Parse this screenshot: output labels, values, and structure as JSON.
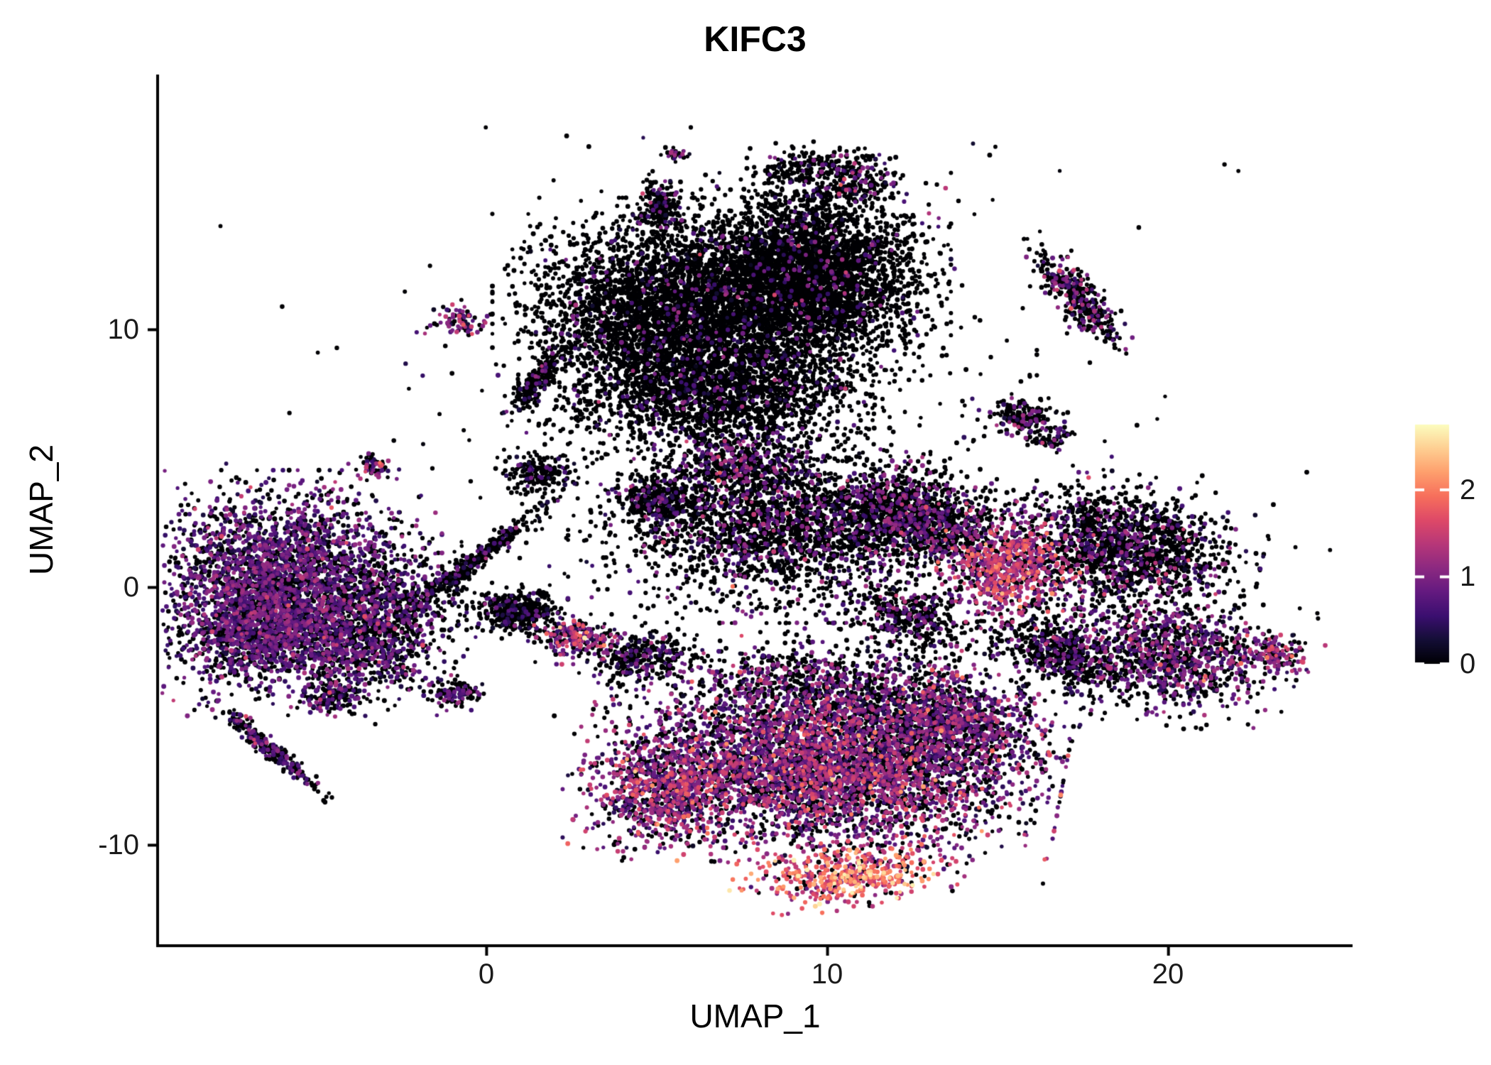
{
  "title": "KIFC3",
  "axes": {
    "x_label": "UMAP_1",
    "y_label": "UMAP_2",
    "x_tick_labels": [
      "0",
      "10",
      "20"
    ],
    "y_tick_labels": [
      "10",
      "0",
      "-10"
    ],
    "colorbar_tick_labels": [
      "2",
      "1",
      "0"
    ]
  },
  "chart_data": {
    "type": "scatter",
    "title": "KIFC3",
    "xlabel": "UMAP_1",
    "ylabel": "UMAP_2",
    "xlim": [
      -9.65,
      25.4
    ],
    "ylim": [
      -13.9,
      19.9
    ],
    "x_ticks": [
      0,
      10,
      20
    ],
    "y_ticks": [
      -10,
      0,
      10
    ],
    "grid": false,
    "legend_position": "right",
    "colorbar": {
      "ticks": [
        2,
        1,
        0
      ],
      "domain": [
        0,
        2.75
      ],
      "colormap": "magma",
      "stops": [
        [
          0.0,
          "#000004"
        ],
        [
          0.1,
          "#140e36"
        ],
        [
          0.2,
          "#3b0f70"
        ],
        [
          0.3,
          "#641a80"
        ],
        [
          0.4,
          "#8c2981"
        ],
        [
          0.5,
          "#b73779"
        ],
        [
          0.6,
          "#de4968"
        ],
        [
          0.7,
          "#f76f5c"
        ],
        [
          0.8,
          "#fe9f6d"
        ],
        [
          0.9,
          "#fecf92"
        ],
        [
          1.0,
          "#fcfdbf"
        ]
      ]
    },
    "seed": 42,
    "point_radius": 2.6,
    "clusters": [
      {
        "id": "left-main",
        "x": -5.9,
        "y": 0.5,
        "sx": 1.7,
        "sy": 1.5,
        "rot": 0,
        "n": 2600,
        "p0": 0.42,
        "mu": 0.75,
        "sd": 0.3
      },
      {
        "id": "left-lower-west",
        "x": -6.9,
        "y": -1.8,
        "sx": 1.2,
        "sy": 0.9,
        "rot": 20,
        "n": 900,
        "p0": 0.45,
        "mu": 0.7,
        "sd": 0.3
      },
      {
        "id": "left-lower-east",
        "x": -4.1,
        "y": -2.3,
        "sx": 1.2,
        "sy": 1.0,
        "rot": -15,
        "n": 900,
        "p0": 0.45,
        "mu": 0.7,
        "sd": 0.3
      },
      {
        "id": "left-tail",
        "x": -6.5,
        "y": -6.1,
        "sx": 1.05,
        "sy": 0.14,
        "rot": -48,
        "n": 260,
        "p0": 0.6,
        "mu": 0.6,
        "sd": 0.35
      },
      {
        "id": "left-small-south",
        "x": -4.6,
        "y": -4.2,
        "sx": 0.45,
        "sy": 0.3,
        "rot": 0,
        "n": 140,
        "p0": 0.55,
        "mu": 0.7,
        "sd": 0.35
      },
      {
        "id": "left-east-scatter",
        "x": -2.6,
        "y": -0.6,
        "sx": 1.0,
        "sy": 1.0,
        "rot": 0,
        "n": 450,
        "p0": 0.65,
        "mu": 0.6,
        "sd": 0.3
      },
      {
        "id": "bridge",
        "x": -0.3,
        "y": 1.1,
        "sx": 1.5,
        "sy": 0.16,
        "rot": 45,
        "n": 380,
        "p0": 0.85,
        "mu": 0.55,
        "sd": 0.3
      },
      {
        "id": "bridge-blob",
        "x": 0.9,
        "y": -0.9,
        "sx": 0.55,
        "sy": 0.4,
        "rot": 0,
        "n": 420,
        "p0": 0.88,
        "mu": 0.5,
        "sd": 0.25
      },
      {
        "id": "top-main-round",
        "x": 9.3,
        "y": 11.9,
        "sx": 1.6,
        "sy": 1.55,
        "rot": 0,
        "n": 3600,
        "p0": 0.94,
        "mu": 0.7,
        "sd": 0.35
      },
      {
        "id": "top-main-left",
        "x": 5.3,
        "y": 10.8,
        "sx": 1.9,
        "sy": 1.6,
        "rot": 0,
        "n": 3100,
        "p0": 0.95,
        "mu": 0.6,
        "sd": 0.3
      },
      {
        "id": "top-main-lower",
        "x": 6.6,
        "y": 7.6,
        "sx": 2.1,
        "sy": 1.2,
        "rot": 0,
        "n": 2100,
        "p0": 0.9,
        "mu": 0.6,
        "sd": 0.3
      },
      {
        "id": "top-halo",
        "x": 7.5,
        "y": 10.5,
        "sx": 3.2,
        "sy": 2.6,
        "rot": 0,
        "n": 700,
        "p0": 0.92,
        "mu": 0.6,
        "sd": 0.3
      },
      {
        "id": "mid-main",
        "x": 8.6,
        "y": 2.4,
        "sx": 2.3,
        "sy": 1.4,
        "rot": 0,
        "n": 2400,
        "p0": 0.8,
        "mu": 0.7,
        "sd": 0.35
      },
      {
        "id": "mid-east",
        "x": 12.1,
        "y": 2.9,
        "sx": 1.0,
        "sy": 0.9,
        "rot": 0,
        "n": 800,
        "p0": 0.72,
        "mu": 0.8,
        "sd": 0.35
      },
      {
        "id": "mid-far-east",
        "x": 13.6,
        "y": 2.3,
        "sx": 0.7,
        "sy": 0.6,
        "rot": 0,
        "n": 300,
        "p0": 0.7,
        "mu": 0.7,
        "sd": 0.35
      },
      {
        "id": "mid-small-left",
        "x": 5.1,
        "y": 3.4,
        "sx": 0.6,
        "sy": 0.5,
        "rot": 0,
        "n": 350,
        "p0": 0.82,
        "mu": 0.6,
        "sd": 0.3
      },
      {
        "id": "mid-upper",
        "x": 7.4,
        "y": 4.8,
        "sx": 0.8,
        "sy": 0.5,
        "rot": 0,
        "n": 300,
        "p0": 0.6,
        "mu": 0.8,
        "sd": 0.35
      },
      {
        "id": "mid-left-small",
        "x": 1.6,
        "y": 4.4,
        "sx": 0.5,
        "sy": 0.35,
        "rot": 0,
        "n": 200,
        "p0": 0.85,
        "mu": 0.5,
        "sd": 0.3
      },
      {
        "id": "bottom-main",
        "x": 9.9,
        "y": -7.0,
        "sx": 2.6,
        "sy": 1.5,
        "rot": -8,
        "n": 4200,
        "p0": 0.38,
        "mu": 0.9,
        "sd": 0.45
      },
      {
        "id": "bottom-left-lobe",
        "x": 5.2,
        "y": -7.9,
        "sx": 1.1,
        "sy": 1.0,
        "rot": 0,
        "n": 900,
        "p0": 0.3,
        "mu": 1.05,
        "sd": 0.45
      },
      {
        "id": "bottom-hotspot",
        "x": 10.6,
        "y": -11.2,
        "sx": 1.3,
        "sy": 0.5,
        "rot": 5,
        "n": 520,
        "p0": 0.12,
        "mu": 1.7,
        "sd": 0.45
      },
      {
        "id": "bottom-right-lobe",
        "x": 13.4,
        "y": -5.3,
        "sx": 1.4,
        "sy": 1.1,
        "rot": -20,
        "n": 1200,
        "p0": 0.45,
        "mu": 0.8,
        "sd": 0.4
      },
      {
        "id": "bottom-right-upper",
        "x": 12.4,
        "y": -1.2,
        "sx": 0.9,
        "sy": 0.6,
        "rot": -20,
        "n": 400,
        "p0": 0.75,
        "mu": 0.7,
        "sd": 0.3
      },
      {
        "id": "bottom-upper-scatter",
        "x": 9.6,
        "y": -3.8,
        "sx": 2.2,
        "sy": 0.9,
        "rot": 0,
        "n": 800,
        "p0": 0.62,
        "mu": 0.8,
        "sd": 0.4
      },
      {
        "id": "right-hot",
        "x": 15.3,
        "y": 0.7,
        "sx": 1.0,
        "sy": 0.85,
        "rot": 0,
        "n": 750,
        "p0": 0.2,
        "mu": 1.25,
        "sd": 0.4
      },
      {
        "id": "right-dark",
        "x": 18.6,
        "y": 1.6,
        "sx": 1.55,
        "sy": 1.05,
        "rot": -10,
        "n": 1600,
        "p0": 0.75,
        "mu": 0.75,
        "sd": 0.35
      },
      {
        "id": "right-lower",
        "x": 20.1,
        "y": -2.6,
        "sx": 1.4,
        "sy": 1.0,
        "rot": -15,
        "n": 1100,
        "p0": 0.52,
        "mu": 0.8,
        "sd": 0.35
      },
      {
        "id": "right-arm",
        "x": 16.9,
        "y": -2.6,
        "sx": 1.1,
        "sy": 0.6,
        "rot": -30,
        "n": 600,
        "p0": 0.78,
        "mu": 0.7,
        "sd": 0.3
      },
      {
        "id": "far-right-small",
        "x": 23.2,
        "y": -2.6,
        "sx": 0.5,
        "sy": 0.35,
        "rot": -20,
        "n": 140,
        "p0": 0.3,
        "mu": 1.0,
        "sd": 0.4
      },
      {
        "id": "topright-elongated",
        "x": 17.3,
        "y": 11.3,
        "sx": 1.0,
        "sy": 0.3,
        "rot": -58,
        "n": 380,
        "p0": 0.72,
        "mu": 0.8,
        "sd": 0.35
      },
      {
        "id": "top-ring-left",
        "x": 9.3,
        "y": 16.3,
        "sx": 0.7,
        "sy": 0.35,
        "rot": 8,
        "n": 170,
        "p0": 0.85,
        "mu": 0.7,
        "sd": 0.35
      },
      {
        "id": "top-ring-right",
        "x": 11.0,
        "y": 16.0,
        "sx": 0.6,
        "sy": 0.45,
        "rot": -25,
        "n": 160,
        "p0": 0.72,
        "mu": 0.85,
        "sd": 0.4
      },
      {
        "id": "top-ring-bottom",
        "x": 10.2,
        "y": 15.3,
        "sx": 0.7,
        "sy": 0.15,
        "rot": 5,
        "n": 90,
        "p0": 0.85,
        "mu": 0.6,
        "sd": 0.3
      },
      {
        "id": "ring-halo",
        "x": 10.5,
        "y": 14.0,
        "sx": 1.5,
        "sy": 0.8,
        "rot": 0,
        "n": 120,
        "p0": 0.9,
        "mu": 0.6,
        "sd": 0.3
      },
      {
        "id": "top-small",
        "x": 5.1,
        "y": 14.8,
        "sx": 0.3,
        "sy": 0.5,
        "rot": 0,
        "n": 180,
        "p0": 0.82,
        "mu": 0.7,
        "sd": 0.4
      },
      {
        "id": "top-tiny",
        "x": 5.6,
        "y": 16.8,
        "sx": 0.18,
        "sy": 0.14,
        "rot": 0,
        "n": 30,
        "p0": 0.7,
        "mu": 0.7,
        "sd": 0.3
      },
      {
        "id": "tiny-purple-pair",
        "x": -0.8,
        "y": 10.3,
        "sx": 0.38,
        "sy": 0.25,
        "rot": 0,
        "n": 80,
        "p0": 0.3,
        "mu": 1.0,
        "sd": 0.4
      },
      {
        "id": "hook",
        "x": 1.5,
        "y": 8.1,
        "sx": 0.75,
        "sy": 0.18,
        "rot": 58,
        "n": 230,
        "p0": 0.85,
        "mu": 0.6,
        "sd": 0.3
      },
      {
        "id": "tiny-left-mid",
        "x": -3.3,
        "y": 4.7,
        "sx": 0.28,
        "sy": 0.2,
        "rot": 0,
        "n": 60,
        "p0": 0.4,
        "mu": 0.9,
        "sd": 0.5
      },
      {
        "id": "small-hot-south",
        "x": 2.7,
        "y": -1.9,
        "sx": 0.55,
        "sy": 0.4,
        "rot": 0,
        "n": 230,
        "p0": 0.35,
        "mu": 1.0,
        "sd": 0.5
      },
      {
        "id": "small-dark-south",
        "x": 4.6,
        "y": -2.7,
        "sx": 0.7,
        "sy": 0.45,
        "rot": 0,
        "n": 300,
        "p0": 0.8,
        "mu": 0.6,
        "sd": 0.3
      },
      {
        "id": "tiny-south",
        "x": -0.9,
        "y": -4.1,
        "sx": 0.35,
        "sy": 0.25,
        "rot": 0,
        "n": 120,
        "p0": 0.65,
        "mu": 0.7,
        "sd": 0.3
      },
      {
        "id": "right-mid-small",
        "x": 15.7,
        "y": 6.6,
        "sx": 0.5,
        "sy": 0.35,
        "rot": 0,
        "n": 170,
        "p0": 0.72,
        "mu": 0.8,
        "sd": 0.35
      },
      {
        "id": "right-mid-tiny",
        "x": 16.6,
        "y": 5.8,
        "sx": 0.3,
        "sy": 0.25,
        "rot": 0,
        "n": 60,
        "p0": 0.72,
        "mu": 0.8,
        "sd": 0.35
      },
      {
        "id": "scatter-noise",
        "x": 8.0,
        "y": 3.0,
        "sx": 7.5,
        "sy": 5.5,
        "rot": 0,
        "n": 350,
        "p0": 0.85,
        "mu": 0.5,
        "sd": 0.3
      }
    ]
  }
}
